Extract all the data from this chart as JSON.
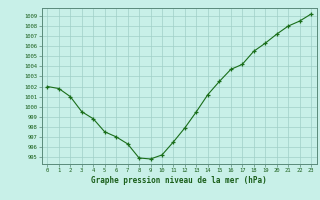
{
  "x": [
    0,
    1,
    2,
    3,
    4,
    5,
    6,
    7,
    8,
    9,
    10,
    11,
    12,
    13,
    14,
    15,
    16,
    17,
    18,
    19,
    20,
    21,
    22,
    23
  ],
  "y": [
    1002.0,
    1001.8,
    1001.0,
    999.5,
    998.8,
    997.5,
    997.0,
    996.3,
    994.9,
    994.8,
    995.2,
    996.5,
    997.9,
    999.5,
    1001.2,
    1002.5,
    1003.7,
    1004.2,
    1005.5,
    1006.3,
    1007.2,
    1008.0,
    1008.5,
    1009.2
  ],
  "line_color": "#1a6e1a",
  "marker_color": "#1a6e1a",
  "bg_color": "#c8f0e8",
  "grid_color": "#a0d0c8",
  "border_color": "#5a8a7a",
  "xlabel": "Graphe pression niveau de la mer (hPa)",
  "xlabel_color": "#1a5e1a",
  "tick_color": "#1a5e1a",
  "ylabel_ticks": [
    995,
    996,
    997,
    998,
    999,
    1000,
    1001,
    1002,
    1003,
    1004,
    1005,
    1006,
    1007,
    1008,
    1009
  ],
  "ylim": [
    994.3,
    1009.8
  ],
  "xlim": [
    -0.5,
    23.5
  ]
}
